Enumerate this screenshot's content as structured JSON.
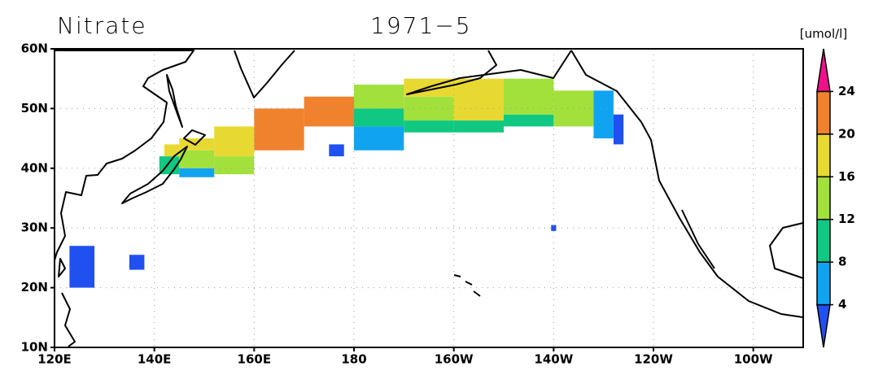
{
  "title": "Nitrate",
  "period": "1971−5",
  "colorbar": {
    "unit": "[umol/l]",
    "levels": [
      4,
      8,
      12,
      16,
      20,
      24
    ],
    "colors": [
      "#2050f0",
      "#10a4f0",
      "#10c882",
      "#a2e03c",
      "#e8d832",
      "#f0822e",
      "#f0108c"
    ]
  },
  "map": {
    "xlim": [
      120,
      270
    ],
    "ylim": [
      10,
      60
    ],
    "xticks": [
      {
        "value": 120,
        "label": "120E"
      },
      {
        "value": 140,
        "label": "140E"
      },
      {
        "value": 160,
        "label": "160E"
      },
      180,
      {
        "value": 200,
        "label": "160W"
      },
      {
        "value": 220,
        "label": "140W"
      },
      {
        "value": 240,
        "label": "120W"
      },
      {
        "value": 260,
        "label": "100W"
      }
    ],
    "yticks": [
      {
        "value": 10,
        "label": "10N"
      },
      {
        "value": 20,
        "label": "20N"
      },
      {
        "value": 30,
        "label": "30N"
      },
      {
        "value": 40,
        "label": "40N"
      },
      {
        "value": 50,
        "label": "50N"
      },
      {
        "value": 60,
        "label": "60N"
      }
    ],
    "cells": [
      {
        "lon": [
          123,
          128
        ],
        "lat": [
          20,
          27
        ],
        "value": 2
      },
      {
        "lon": [
          135,
          138
        ],
        "lat": [
          23,
          25.5
        ],
        "value": 2
      },
      {
        "lon": [
          219.5,
          220.5
        ],
        "lat": [
          29.5,
          30.5
        ],
        "value": 2
      },
      {
        "lon": [
          141,
          145
        ],
        "lat": [
          39,
          42
        ],
        "value": 10
      },
      {
        "lon": [
          142,
          145
        ],
        "lat": [
          42,
          44
        ],
        "value": 18
      },
      {
        "lon": [
          145,
          152
        ],
        "lat": [
          38.5,
          40
        ],
        "value": 6
      },
      {
        "lon": [
          145,
          152
        ],
        "lat": [
          40,
          43
        ],
        "value": 14
      },
      {
        "lon": [
          145,
          152
        ],
        "lat": [
          43,
          45
        ],
        "value": 18
      },
      {
        "lon": [
          152,
          160
        ],
        "lat": [
          39,
          42
        ],
        "value": 14
      },
      {
        "lon": [
          152,
          160
        ],
        "lat": [
          42,
          47
        ],
        "value": 18
      },
      {
        "lon": [
          160,
          170
        ],
        "lat": [
          43,
          50
        ],
        "value": 22
      },
      {
        "lon": [
          170,
          180
        ],
        "lat": [
          47,
          52
        ],
        "value": 22
      },
      {
        "lon": [
          175,
          178
        ],
        "lat": [
          42,
          44
        ],
        "value": 2
      },
      {
        "lon": [
          180,
          190
        ],
        "lat": [
          43,
          47
        ],
        "value": 6
      },
      {
        "lon": [
          180,
          190
        ],
        "lat": [
          47,
          50
        ],
        "value": 10
      },
      {
        "lon": [
          180,
          190
        ],
        "lat": [
          50,
          54
        ],
        "value": 14
      },
      {
        "lon": [
          190,
          200
        ],
        "lat": [
          46,
          48
        ],
        "value": 10
      },
      {
        "lon": [
          190,
          200
        ],
        "lat": [
          48,
          52
        ],
        "value": 14
      },
      {
        "lon": [
          190,
          200
        ],
        "lat": [
          52,
          55
        ],
        "value": 18
      },
      {
        "lon": [
          200,
          210
        ],
        "lat": [
          46,
          48
        ],
        "value": 10
      },
      {
        "lon": [
          200,
          210
        ],
        "lat": [
          48,
          55
        ],
        "value": 18
      },
      {
        "lon": [
          210,
          220
        ],
        "lat": [
          47,
          49
        ],
        "value": 10
      },
      {
        "lon": [
          210,
          220
        ],
        "lat": [
          49,
          55
        ],
        "value": 14
      },
      {
        "lon": [
          220,
          228
        ],
        "lat": [
          47,
          53
        ],
        "value": 14
      },
      {
        "lon": [
          228,
          232
        ],
        "lat": [
          45,
          53
        ],
        "value": 6
      },
      {
        "lon": [
          232,
          234
        ],
        "lat": [
          44,
          49
        ],
        "value": 2
      }
    ]
  }
}
